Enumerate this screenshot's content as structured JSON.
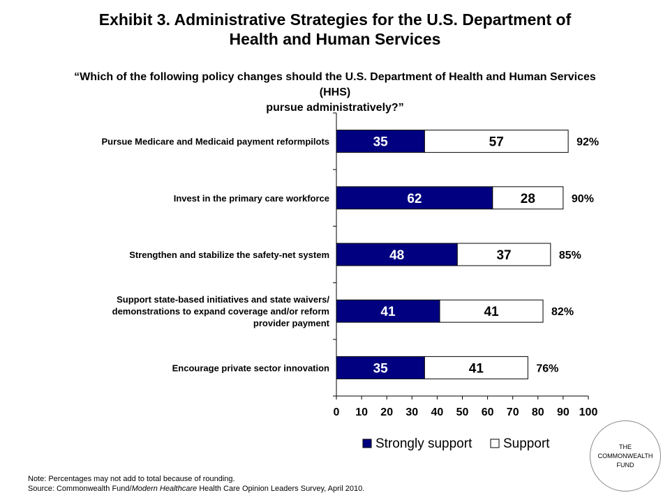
{
  "header": {
    "title_line1": "Exhibit 3. Administrative Strategies for the U.S. Department of",
    "title_line2": "Health and Human Services",
    "subtitle_line1": "“Which of the following policy changes should the U.S. Department of Health and Human Services (HHS)",
    "subtitle_line2": "pursue administratively?”"
  },
  "chart_data": {
    "type": "bar",
    "orientation": "horizontal",
    "stacked": true,
    "categories": [
      [
        "Pursue Medicare and Medicaid payment reformpilots"
      ],
      [
        "Invest in the primary care workforce"
      ],
      [
        "Strengthen and stabilize the safety-net system"
      ],
      [
        "Support state-based initiatives and state waivers/",
        "demonstrations to expand coverage and/or reform",
        "provider payment"
      ],
      [
        "Encourage private sector innovation"
      ]
    ],
    "series": [
      {
        "name": "Strongly support",
        "values": [
          35,
          62,
          48,
          41,
          35
        ],
        "color": "#000080"
      },
      {
        "name": "Support",
        "values": [
          57,
          28,
          37,
          41,
          41
        ],
        "color": "#ffffff"
      }
    ],
    "totals": [
      "92%",
      "90%",
      "85%",
      "82%",
      "76%"
    ],
    "xlim": [
      0,
      100
    ],
    "xticks": [
      0,
      10,
      20,
      30,
      40,
      50,
      60,
      70,
      80,
      90,
      100
    ],
    "grid": false,
    "legend_position": "bottom-right"
  },
  "notes": {
    "note": "Note: Percentages may not add to total because of rounding.",
    "source_prefix": "Source: Commonwealth Fund/",
    "source_italic": "Modern Healthcare",
    "source_suffix": " Health Care Opinion Leaders Survey, April 2010."
  },
  "logo": {
    "line1": "THE",
    "line2": "COMMONWEALTH",
    "line3": "FUND"
  }
}
